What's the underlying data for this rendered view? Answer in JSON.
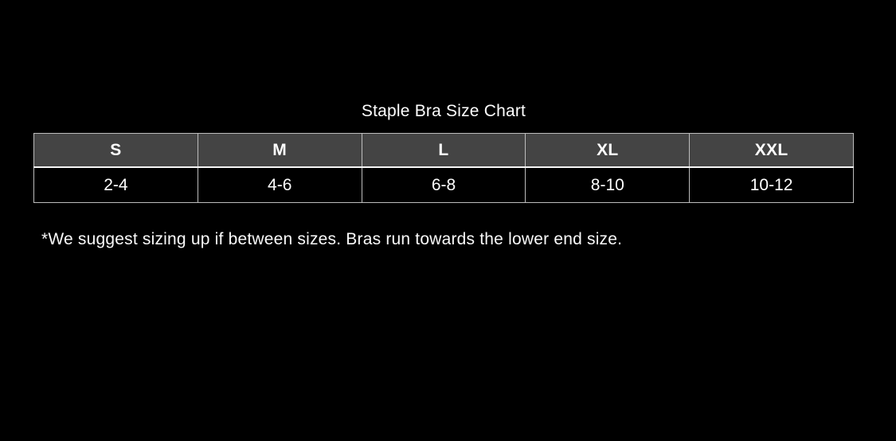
{
  "colors": {
    "background": "#000000",
    "header_bg": "#444444",
    "border": "#bdbdbd",
    "header_separator": "#f5f5f5",
    "text": "#ffffff"
  },
  "title": "Staple Bra Size Chart",
  "note": "*We suggest sizing up if between sizes. Bras run towards the lower end size.",
  "size_chart": {
    "columns": [
      "S",
      "M",
      "L",
      "XL",
      "XXL"
    ],
    "values": [
      "2-4",
      "4-6",
      "6-8",
      "8-10",
      "10-12"
    ]
  },
  "chart_data": {
    "type": "table",
    "title": "Staple Bra Size Chart",
    "columns": [
      "S",
      "M",
      "L",
      "XL",
      "XXL"
    ],
    "rows": [
      [
        "2-4",
        "4-6",
        "6-8",
        "8-10",
        "10-12"
      ]
    ],
    "footnote": "*We suggest sizing up if between sizes. Bras run towards the lower end size.",
    "layout": {
      "background": "black",
      "header_style": "dark-gray with bold white text",
      "grid": "on"
    }
  }
}
